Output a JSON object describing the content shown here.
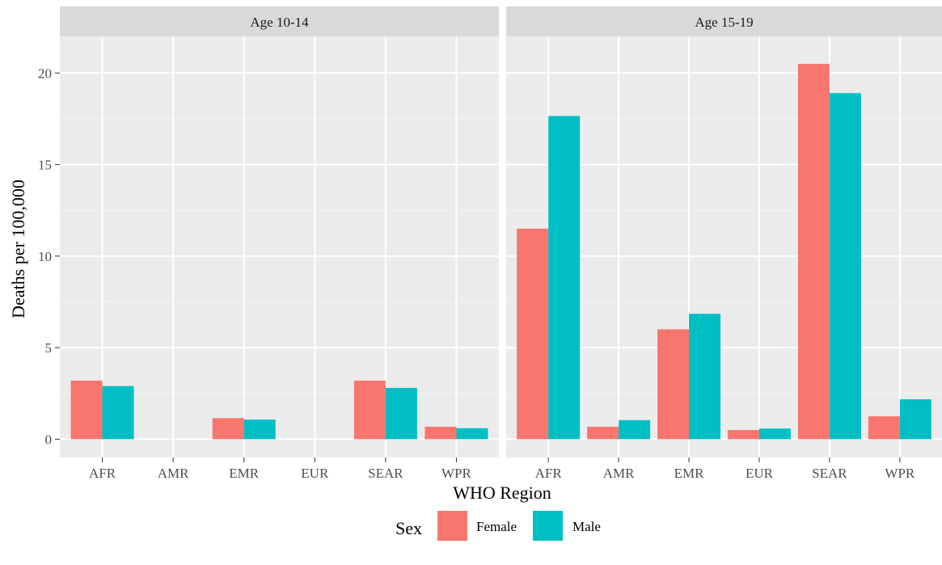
{
  "chart_data": {
    "type": "bar",
    "xlabel": "WHO Region",
    "ylabel": "Deaths per 100,000",
    "categories": [
      "AFR",
      "AMR",
      "EMR",
      "EUR",
      "SEAR",
      "WPR"
    ],
    "ylim": [
      -1,
      22
    ],
    "yticks": [
      0,
      5,
      10,
      15,
      20
    ],
    "grid": true,
    "legend": {
      "title": "Sex",
      "position": "bottom",
      "entries": [
        "Female",
        "Male"
      ]
    },
    "colors": {
      "Female": "#F8766D",
      "Male": "#00BFC4"
    },
    "panels": [
      {
        "title": "Age 10-14",
        "series": [
          {
            "name": "Female",
            "values": [
              3.2,
              0,
              1.15,
              0,
              3.2,
              0.68
            ]
          },
          {
            "name": "Male",
            "values": [
              2.9,
              0,
              1.07,
              0,
              2.8,
              0.6
            ]
          }
        ]
      },
      {
        "title": "Age 15-19",
        "series": [
          {
            "name": "Female",
            "values": [
              11.5,
              0.68,
              6.0,
              0.5,
              20.5,
              1.25
            ]
          },
          {
            "name": "Male",
            "values": [
              17.65,
              1.04,
              6.85,
              0.58,
              18.9,
              2.18
            ]
          }
        ]
      }
    ]
  }
}
